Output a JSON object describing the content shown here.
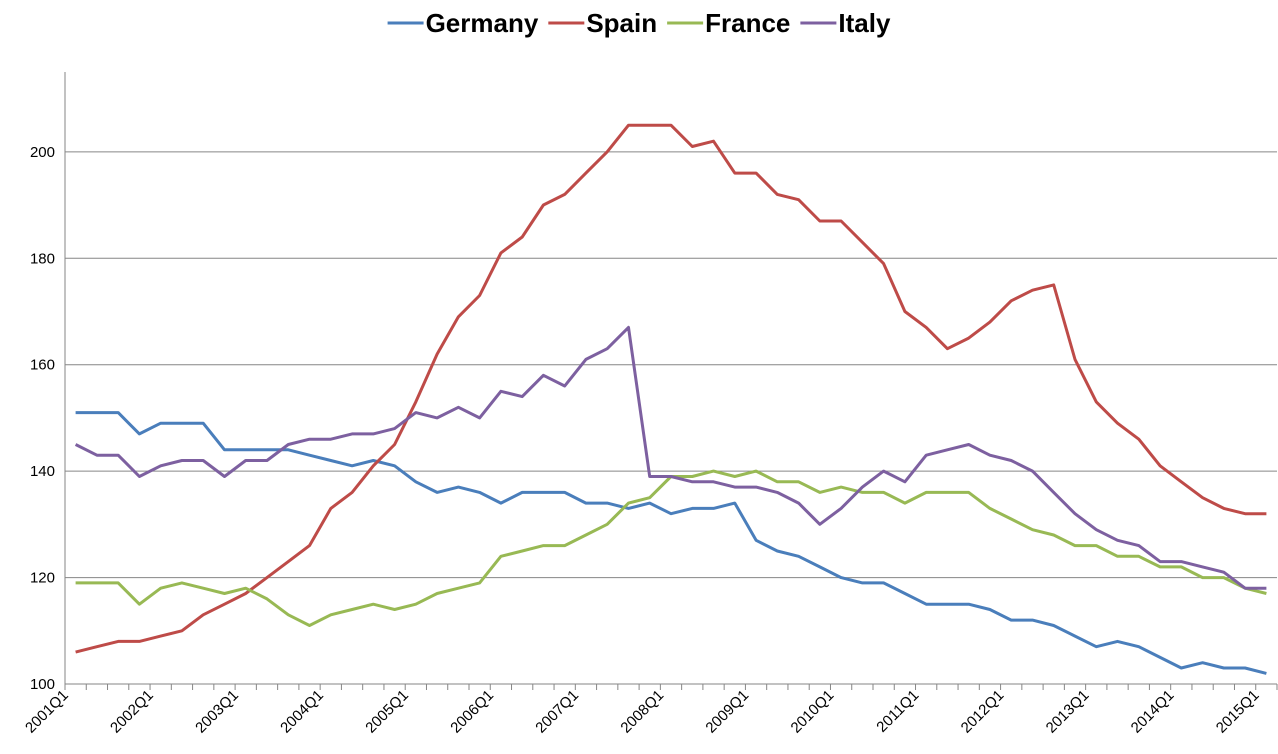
{
  "chart_data": {
    "type": "line",
    "categories": [
      "2001Q1",
      null,
      null,
      null,
      "2002Q1",
      null,
      null,
      null,
      "2003Q1",
      null,
      null,
      null,
      "2004Q1",
      null,
      null,
      null,
      "2005Q1",
      null,
      null,
      null,
      "2006Q1",
      null,
      null,
      null,
      "2007Q1",
      null,
      null,
      null,
      "2008Q1",
      null,
      null,
      null,
      "2009Q1",
      null,
      null,
      null,
      "2010Q1",
      null,
      null,
      null,
      "2011Q1",
      null,
      null,
      null,
      "2012Q1",
      null,
      null,
      null,
      "2013Q1",
      null,
      null,
      null,
      "2014Q1",
      null,
      null,
      null,
      "2015Q1"
    ],
    "series": [
      {
        "name": "Germany",
        "color": "#4a7ebb",
        "values": [
          151,
          151,
          151,
          147,
          149,
          149,
          149,
          144,
          144,
          144,
          144,
          143,
          142,
          141,
          142,
          141,
          138,
          136,
          137,
          136,
          134,
          136,
          136,
          136,
          134,
          134,
          133,
          134,
          132,
          133,
          133,
          134,
          127,
          125,
          124,
          122,
          120,
          119,
          119,
          117,
          115,
          115,
          115,
          114,
          112,
          112,
          111,
          109,
          107,
          108,
          107,
          105,
          103,
          104,
          103,
          103,
          102
        ]
      },
      {
        "name": "Spain",
        "color": "#be4b48",
        "values": [
          106,
          107,
          108,
          108,
          109,
          110,
          113,
          115,
          117,
          120,
          123,
          126,
          133,
          136,
          141,
          145,
          153,
          162,
          169,
          173,
          181,
          184,
          190,
          192,
          196,
          200,
          205,
          205,
          205,
          201,
          202,
          196,
          196,
          192,
          191,
          187,
          187,
          183,
          179,
          170,
          167,
          163,
          165,
          168,
          172,
          174,
          175,
          161,
          153,
          149,
          146,
          141,
          138,
          135,
          133,
          132,
          132
        ]
      },
      {
        "name": "France",
        "color": "#98b954",
        "values": [
          119,
          119,
          119,
          115,
          118,
          119,
          118,
          117,
          118,
          116,
          113,
          111,
          113,
          114,
          115,
          114,
          115,
          117,
          118,
          119,
          124,
          125,
          126,
          126,
          128,
          130,
          134,
          135,
          139,
          139,
          140,
          139,
          140,
          138,
          138,
          136,
          137,
          136,
          136,
          134,
          136,
          136,
          136,
          133,
          131,
          129,
          128,
          126,
          126,
          124,
          124,
          122,
          122,
          120,
          120,
          118,
          117
        ]
      },
      {
        "name": "Italy",
        "color": "#7d60a0",
        "values": [
          145,
          143,
          143,
          139,
          141,
          142,
          142,
          139,
          142,
          142,
          145,
          146,
          146,
          147,
          147,
          148,
          151,
          150,
          152,
          150,
          155,
          154,
          158,
          156,
          161,
          163,
          167,
          139,
          139,
          138,
          138,
          137,
          137,
          136,
          134,
          130,
          133,
          137,
          140,
          138,
          143,
          144,
          145,
          143,
          142,
          140,
          136,
          132,
          129,
          127,
          126,
          123,
          123,
          122,
          121,
          118,
          118
        ]
      }
    ],
    "ylim": [
      100,
      215
    ],
    "yticks": [
      100,
      120,
      140,
      160,
      180,
      200
    ],
    "grid": true,
    "legend": "top"
  }
}
